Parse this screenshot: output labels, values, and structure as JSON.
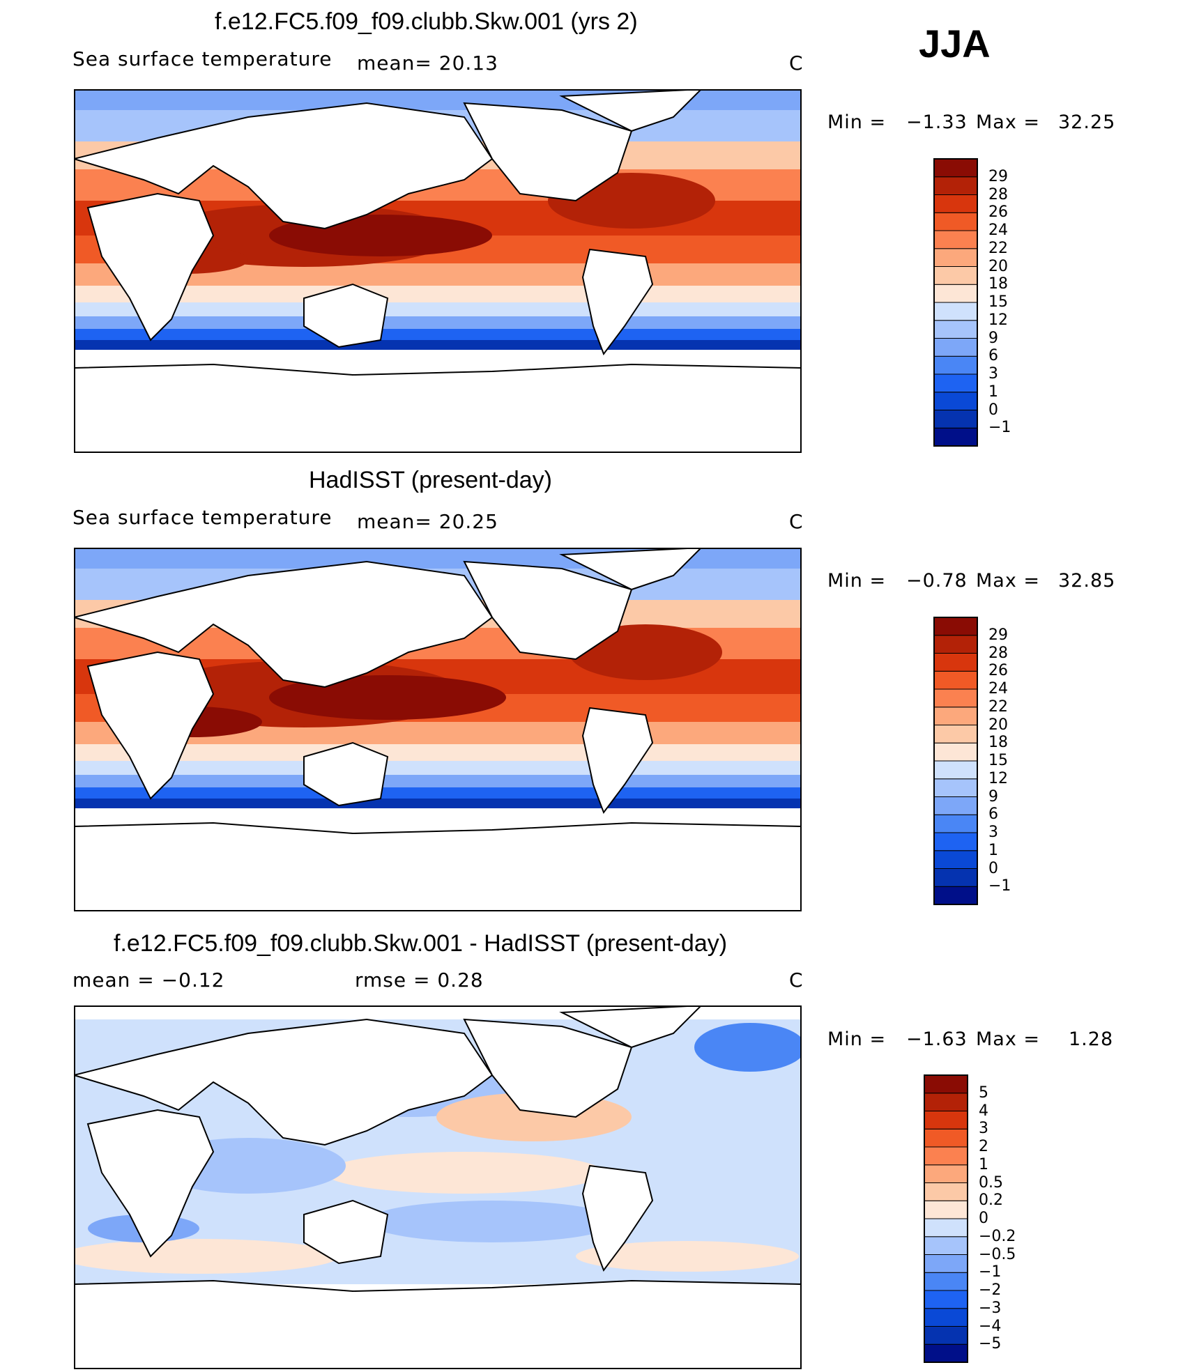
{
  "season": "JJA",
  "colors": {
    "levels_sst": [
      "#000f89",
      "#0533b0",
      "#0a49d6",
      "#1e63f2",
      "#4a86f5",
      "#7da7f8",
      "#a6c4fb",
      "#cfe1fc",
      "#fde6d6",
      "#fcc9a7",
      "#fca87c",
      "#fb8150",
      "#f05a26",
      "#d8360d",
      "#b32207",
      "#8a0c04"
    ],
    "levels_diff": [
      "#000f89",
      "#0533b0",
      "#0a49d6",
      "#1e63f2",
      "#4a86f5",
      "#7da7f8",
      "#a6c4fb",
      "#cfe1fc",
      "#fde6d6",
      "#fcc9a7",
      "#fca87c",
      "#fb8150",
      "#f05a26",
      "#d8360d",
      "#b32207",
      "#8a0c04"
    ]
  },
  "panels": [
    {
      "title": "f.e12.FC5.f09_f09.clubb.Skw.001 (yrs 2)",
      "variable": "Sea surface temperature",
      "stat1": "mean=   20.13",
      "stat2": "",
      "units": "C",
      "min_label": "Min =",
      "min_value": "−1.33",
      "max_label": "Max =",
      "max_value": "32.25",
      "levels": [
        "29",
        "28",
        "26",
        "24",
        "22",
        "20",
        "18",
        "15",
        "12",
        "9",
        "6",
        "3",
        "1",
        "0",
        "−1"
      ]
    },
    {
      "title": "HadISST (present-day)",
      "variable": "Sea surface temperature",
      "stat1": "mean=   20.25",
      "stat2": "",
      "units": "C",
      "min_label": "Min =",
      "min_value": "−0.78",
      "max_label": "Max =",
      "max_value": "32.85",
      "levels": [
        "29",
        "28",
        "26",
        "24",
        "22",
        "20",
        "18",
        "15",
        "12",
        "9",
        "6",
        "3",
        "1",
        "0",
        "−1"
      ]
    },
    {
      "title": "f.e12.FC5.f09_f09.clubb.Skw.001 - HadISST (present-day)",
      "variable": "",
      "stat1": "mean =   −0.12",
      "stat2": "rmse =    0.28",
      "units": "C",
      "min_label": "Min =",
      "min_value": "−1.63",
      "max_label": "Max =",
      "max_value": "1.28",
      "levels": [
        "5",
        "4",
        "3",
        "2",
        "1",
        "0.5",
        "0.2",
        "0",
        "−0.2",
        "−0.5",
        "−1",
        "−2",
        "−3",
        "−4",
        "−5"
      ]
    }
  ]
}
